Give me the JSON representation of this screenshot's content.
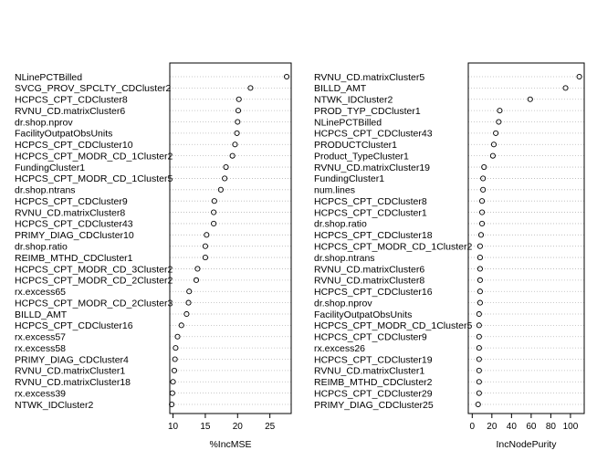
{
  "chart_data": [
    {
      "type": "scatter",
      "title": "",
      "xlabel": "%IncMSE",
      "ylabel": "",
      "xlim": [
        9.5,
        28.3
      ],
      "xticks": [
        10,
        15,
        20,
        25
      ],
      "grid": "dotted horizontal lines",
      "points": [
        {
          "label": "NLinePCTBilled",
          "value": 27.6
        },
        {
          "label": "SVCG_PROV_SPCLTY_CDCluster2",
          "value": 22.0
        },
        {
          "label": "HCPCS_CPT_CDCluster8",
          "value": 20.2
        },
        {
          "label": "RVNU_CD.matrixCluster6",
          "value": 20.1
        },
        {
          "label": "dr.shop.nprov",
          "value": 20.0
        },
        {
          "label": "FacilityOutpatObsUnits",
          "value": 19.9
        },
        {
          "label": "HCPCS_CPT_CDCluster10",
          "value": 19.6
        },
        {
          "label": "HCPCS_CPT_MODR_CD_1Cluster2",
          "value": 19.2
        },
        {
          "label": "FundingCluster1",
          "value": 18.2
        },
        {
          "label": "HCPCS_CPT_MODR_CD_1Cluster5",
          "value": 18.0
        },
        {
          "label": "dr.shop.ntrans",
          "value": 17.4
        },
        {
          "label": "HCPCS_CPT_CDCluster9",
          "value": 16.4
        },
        {
          "label": "RVNU_CD.matrixCluster8",
          "value": 16.3
        },
        {
          "label": "HCPCS_CPT_CDCluster43",
          "value": 16.3
        },
        {
          "label": "PRIMY_DIAG_CDCluster10",
          "value": 15.2
        },
        {
          "label": "dr.shop.ratio",
          "value": 15.0
        },
        {
          "label": "REIMB_MTHD_CDCluster1",
          "value": 15.0
        },
        {
          "label": "HCPCS_CPT_MODR_CD_3Cluster2",
          "value": 13.8
        },
        {
          "label": "HCPCS_CPT_MODR_CD_2Cluster2",
          "value": 13.6
        },
        {
          "label": "rx.excess65",
          "value": 12.5
        },
        {
          "label": "HCPCS_CPT_MODR_CD_2Cluster3",
          "value": 12.4
        },
        {
          "label": "BILLD_AMT",
          "value": 12.1
        },
        {
          "label": "HCPCS_CPT_CDCluster16",
          "value": 11.3
        },
        {
          "label": "rx.excess57",
          "value": 10.7
        },
        {
          "label": "rx.excess58",
          "value": 10.4
        },
        {
          "label": "PRIMY_DIAG_CDCluster4",
          "value": 10.3
        },
        {
          "label": "RVNU_CD.matrixCluster1",
          "value": 10.2
        },
        {
          "label": "RVNU_CD.matrixCluster18",
          "value": 10.0
        },
        {
          "label": "rx.excess39",
          "value": 9.9
        },
        {
          "label": "NTWK_IDCluster2",
          "value": 9.8
        }
      ]
    },
    {
      "type": "scatter",
      "title": "",
      "xlabel": "IncNodePurity",
      "ylabel": "",
      "xlim": [
        -4,
        114
      ],
      "xticks": [
        0,
        20,
        40,
        60,
        80,
        100
      ],
      "grid": "dotted horizontal lines",
      "points": [
        {
          "label": "RVNU_CD.matrixCluster5",
          "value": 109
        },
        {
          "label": "BILLD_AMT",
          "value": 95
        },
        {
          "label": "NTWK_IDCluster2",
          "value": 59
        },
        {
          "label": "PROD_TYP_CDCluster1",
          "value": 28
        },
        {
          "label": "NLinePCTBilled",
          "value": 27
        },
        {
          "label": "HCPCS_CPT_CDCluster43",
          "value": 24
        },
        {
          "label": "PRODUCTCluster1",
          "value": 22
        },
        {
          "label": "Product_TypeCluster1",
          "value": 21
        },
        {
          "label": "RVNU_CD.matrixCluster19",
          "value": 12
        },
        {
          "label": "FundingCluster1",
          "value": 11
        },
        {
          "label": "num.lines",
          "value": 11
        },
        {
          "label": "HCPCS_CPT_CDCluster8",
          "value": 10
        },
        {
          "label": "HCPCS_CPT_CDCluster1",
          "value": 10
        },
        {
          "label": "dr.shop.ratio",
          "value": 10
        },
        {
          "label": "HCPCS_CPT_CDCluster18",
          "value": 9
        },
        {
          "label": "HCPCS_CPT_MODR_CD_1Cluster2",
          "value": 8
        },
        {
          "label": "dr.shop.ntrans",
          "value": 8
        },
        {
          "label": "RVNU_CD.matrixCluster6",
          "value": 8
        },
        {
          "label": "RVNU_CD.matrixCluster8",
          "value": 8
        },
        {
          "label": "HCPCS_CPT_CDCluster16",
          "value": 8
        },
        {
          "label": "dr.shop.nprov",
          "value": 8
        },
        {
          "label": "FacilityOutpatObsUnits",
          "value": 7
        },
        {
          "label": "HCPCS_CPT_MODR_CD_1Cluster5",
          "value": 7
        },
        {
          "label": "HCPCS_CPT_CDCluster9",
          "value": 7
        },
        {
          "label": "rx.excess26",
          "value": 7
        },
        {
          "label": "HCPCS_CPT_CDCluster19",
          "value": 7
        },
        {
          "label": "RVNU_CD.matrixCluster1",
          "value": 7
        },
        {
          "label": "REIMB_MTHD_CDCluster2",
          "value": 7
        },
        {
          "label": "HCPCS_CPT_CDCluster29",
          "value": 7
        },
        {
          "label": "PRIMY_DIAG_CDCluster25",
          "value": 6
        }
      ]
    }
  ]
}
